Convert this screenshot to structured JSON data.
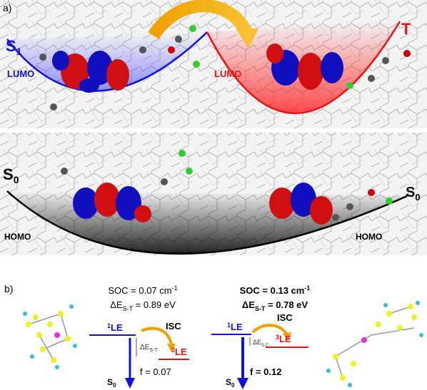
{
  "panel_a": {
    "label": "a)",
    "top": {
      "left_state": {
        "base": "S",
        "sub": "1"
      },
      "right_state": "T",
      "left_orbital": "LUMO",
      "right_orbital": "LUMO"
    },
    "bottom": {
      "left_state": {
        "base": "S",
        "sub": "0"
      },
      "right_state": {
        "base": "S",
        "sub": "0"
      },
      "left_orbital": "HOMO",
      "right_orbital": "HOMO"
    }
  },
  "panel_b": {
    "label": "b)",
    "left": {
      "soc": {
        "text": "SOC = 0.07 cm",
        "sup": "-1"
      },
      "gap": {
        "base": "ΔE",
        "sub": "S-T",
        "rest": " = 0.89 eV"
      },
      "singlet": {
        "sup": "1",
        "base": "LE"
      },
      "isc": "ISC",
      "small_gap": {
        "base": "ΔE",
        "sub": "S-T"
      },
      "triplet": {
        "sup": "3",
        "base": "LE"
      },
      "f": "f = 0.07",
      "ground": {
        "base": "S",
        "sub": "0"
      }
    },
    "right": {
      "soc": {
        "text": "SOC = 0.13 cm",
        "sup": "-1"
      },
      "gap": {
        "base": "ΔE",
        "sub": "S-T",
        "rest": " = 0.78 eV"
      },
      "singlet": {
        "sup": "1",
        "base": "LE"
      },
      "isc": "ISC",
      "small_gap": {
        "base": "ΔE",
        "sub": "S-T"
      },
      "triplet": {
        "sup": "3",
        "base": "LE"
      },
      "f": "f = 0.12",
      "ground": {
        "base": "S",
        "sub": "0"
      }
    }
  }
}
